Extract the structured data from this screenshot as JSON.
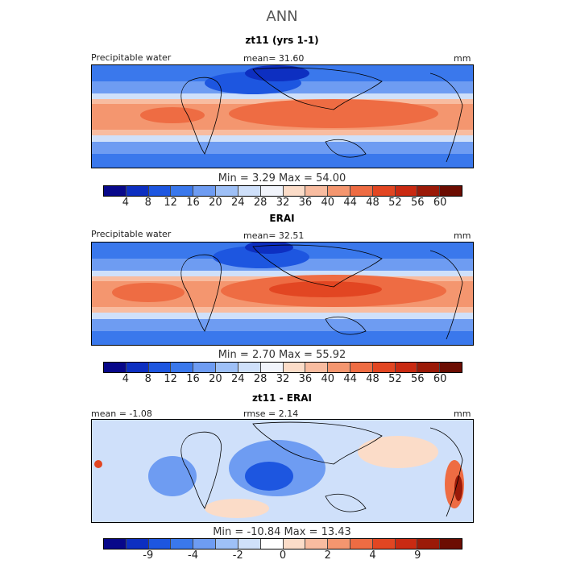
{
  "title": "ANN",
  "panels": [
    {
      "title": "zt11 (yrs 1-1)",
      "field": "Precipitable water",
      "stat": "mean=  31.60",
      "units": "mm",
      "min_label": "Min =",
      "min_value": "3.29",
      "max_label": "Max =",
      "max_value": "54.00",
      "ticks": [
        "4",
        "8",
        "12",
        "16",
        "20",
        "24",
        "28",
        "32",
        "36",
        "40",
        "44",
        "48",
        "52",
        "56",
        "60"
      ]
    },
    {
      "title": "ERAI",
      "field": "Precipitable water",
      "stat": "mean=  32.51",
      "units": "mm",
      "min_label": "Min =",
      "min_value": "2.70",
      "max_label": "Max =",
      "max_value": "55.92",
      "ticks": [
        "4",
        "8",
        "12",
        "16",
        "20",
        "24",
        "28",
        "32",
        "36",
        "40",
        "44",
        "48",
        "52",
        "56",
        "60"
      ]
    },
    {
      "title": "zt11 - ERAI",
      "mean_stat": "mean =  -1.08",
      "rmse_stat": "rmse =   2.14",
      "units": "mm",
      "min_label": "Min =",
      "min_value": "-10.84",
      "max_label": "Max =",
      "max_value": "13.43",
      "ticks": [
        "-9",
        "-4",
        "-2",
        "0",
        "2",
        "4",
        "9"
      ]
    }
  ],
  "colors": {
    "abs_scale": [
      "#08088a",
      "#0d2fc1",
      "#1d56e0",
      "#3a78ec",
      "#6e9cf2",
      "#9ec0f7",
      "#cfe0fa",
      "#f1f4fb",
      "#fbdcc8",
      "#f8bca0",
      "#f4966f",
      "#ee6c43",
      "#e24622",
      "#c92a12",
      "#9b1a08",
      "#6c0d02"
    ],
    "diff_scale": [
      "#08088a",
      "#0d2fc1",
      "#1d56e0",
      "#3a78ec",
      "#6e9cf2",
      "#9ec0f7",
      "#cfe0fa",
      "#ffffff",
      "#fbdcc8",
      "#f8bca0",
      "#f4966f",
      "#ee6c43",
      "#e24622",
      "#c92a12",
      "#9b1a08",
      "#6c0d02"
    ],
    "land_outline": "#000000"
  }
}
